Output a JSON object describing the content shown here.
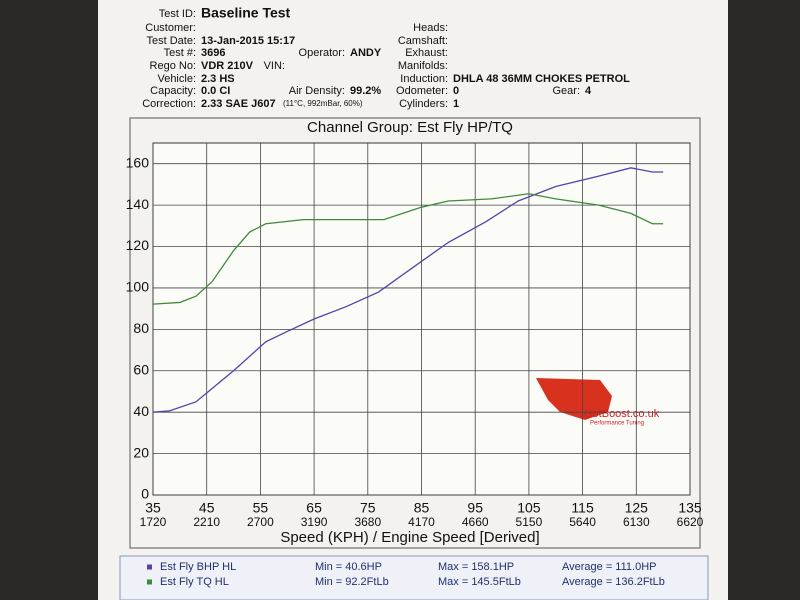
{
  "header": {
    "left": [
      {
        "label": "Test ID:",
        "value": "Baseline Test"
      },
      {
        "label": "Customer:"
      },
      {
        "label": "Test Date:",
        "value": "13-Jan-2015 15:17"
      },
      {
        "label": "Test #:",
        "value": "3696"
      },
      {
        "label": "Rego No:",
        "value": "VDR 210V"
      },
      {
        "label": "Vehicle:",
        "value": "2.3 HS"
      },
      {
        "label": "Capacity:",
        "value": "0.0 CI"
      },
      {
        "label": "Correction:",
        "value": "2.33 SAE J607"
      }
    ],
    "middle": [
      {
        "label": "Operator:",
        "value": "ANDY"
      },
      {
        "label": "VIN:"
      },
      {
        "label": "Air Density:",
        "value": "99.2%"
      },
      {
        "label": "(11°C, 992mBar, 60%)"
      }
    ],
    "right": [
      {
        "label": "Heads:"
      },
      {
        "label": "Camshaft:"
      },
      {
        "label": "Exhaust:"
      },
      {
        "label": "Manifolds:"
      },
      {
        "label": "Induction:",
        "value": "DHLA 48 36MM CHOKES PETROL"
      },
      {
        "label": "Odometer:",
        "value": "0"
      },
      {
        "label": "Cylinders:",
        "value": "1"
      }
    ],
    "gear": {
      "label": "Gear:",
      "value": "4"
    }
  },
  "logo": {
    "name": "GotBoost.co.uk",
    "tagline": "Performance Tuning"
  },
  "chart_data": {
    "type": "line",
    "title": "Channel Group: Est Fly HP/TQ",
    "x_label": "Speed (KPH) / Engine Speed [Derived]",
    "xlim": [
      35,
      135
    ],
    "xticks": [
      35,
      45,
      55,
      65,
      75,
      85,
      95,
      105,
      115,
      125,
      135
    ],
    "x_secondary_ticks": [
      1720,
      2210,
      2700,
      3190,
      3680,
      4170,
      4660,
      5150,
      5640,
      6130,
      6620
    ],
    "ylim": [
      0,
      170
    ],
    "yticks": [
      0,
      20,
      40,
      60,
      80,
      100,
      120,
      140,
      160
    ],
    "grid": true,
    "series": [
      {
        "name": "Est Fly BHP HL",
        "color": "#5a3fa8",
        "x": [
          35,
          38,
          43,
          50,
          56,
          60,
          65,
          71,
          77,
          84,
          90,
          97,
          103,
          110,
          118,
          124,
          128,
          130
        ],
        "values": [
          40,
          40.6,
          45,
          60,
          74,
          79,
          85,
          91,
          98,
          111,
          122,
          132,
          142,
          149,
          154,
          158,
          156,
          156
        ],
        "stats": [
          "Min = 40.6HP",
          "Max = 158.1HP",
          "Average = 111.0HP"
        ]
      },
      {
        "name": "Est Fly TQ HL",
        "color": "#3f8a3a",
        "x": [
          35,
          40,
          43,
          46,
          50,
          53,
          56,
          63,
          71,
          78,
          85,
          90,
          98,
          105,
          110,
          118,
          124,
          128,
          130
        ],
        "values": [
          92.2,
          93,
          96,
          103,
          118,
          127,
          131,
          133,
          133,
          133,
          139,
          142,
          143,
          145.5,
          143,
          140,
          136,
          131,
          131
        ],
        "stats": [
          "Min = 92.2FtLb",
          "Max = 145.5FtLb",
          "Average = 136.2FtLb"
        ]
      }
    ]
  }
}
